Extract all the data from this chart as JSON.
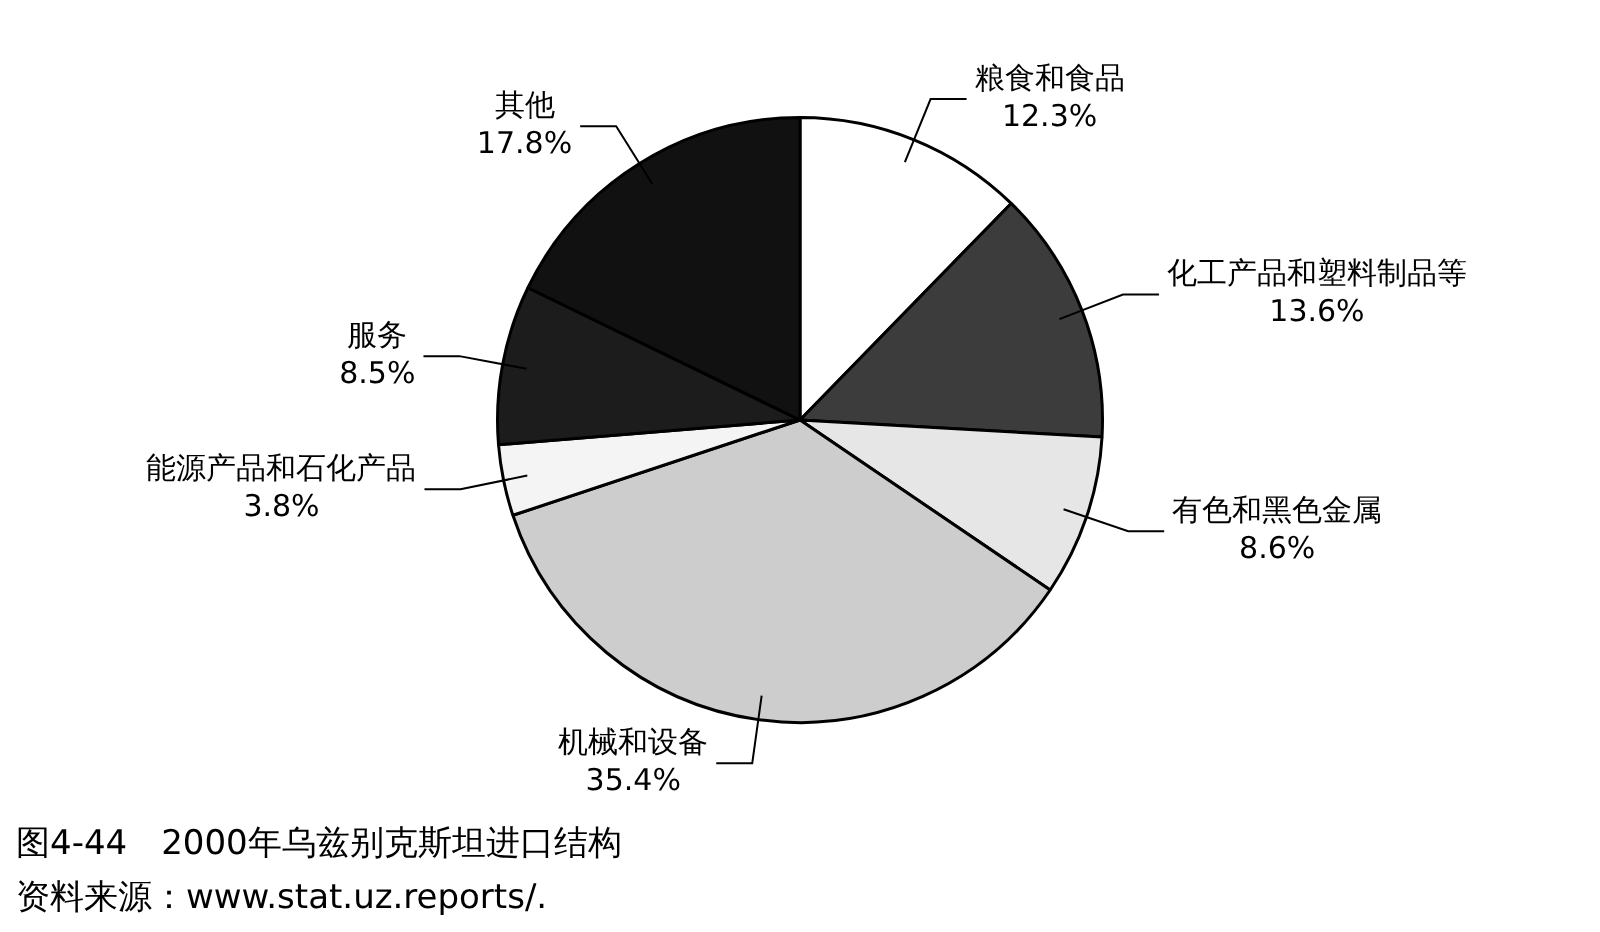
{
  "chart_data": {
    "type": "pie",
    "title": "图4-44　2000年乌兹别克斯坦进口结构",
    "categories": [
      "粮食和食品",
      "化工产品和塑料制品等",
      "有色和黑色金属",
      "机械和设备",
      "能源产品和石化产品",
      "服务",
      "其他"
    ],
    "values": [
      12.3,
      13.6,
      8.6,
      35.4,
      3.8,
      8.5,
      17.8
    ],
    "value_labels": [
      "12.3%",
      "13.6%",
      "8.6%",
      "35.4%",
      "3.8%",
      "8.5%",
      "17.8%"
    ],
    "colors": [
      "#ffffff",
      "#3c3c3c",
      "#e6e6e6",
      "#cdcdcd",
      "#f4f4f4",
      "#1c1c1c",
      "#111111"
    ],
    "annotations": [
      "资料来源：www.stat.uz.reports/."
    ],
    "legend": false
  }
}
